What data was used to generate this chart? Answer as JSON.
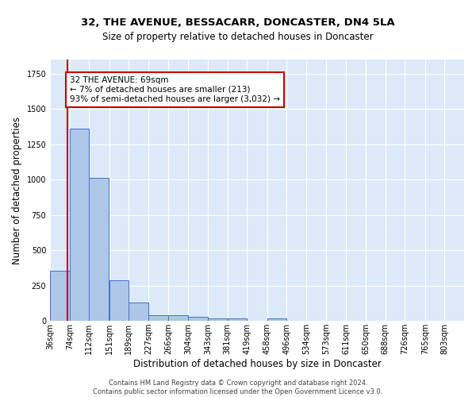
{
  "title": "32, THE AVENUE, BESSACARR, DONCASTER, DN4 5LA",
  "subtitle": "Size of property relative to detached houses in Doncaster",
  "xlabel": "Distribution of detached houses by size in Doncaster",
  "ylabel": "Number of detached properties",
  "bin_labels": [
    "36sqm",
    "74sqm",
    "112sqm",
    "151sqm",
    "189sqm",
    "227sqm",
    "266sqm",
    "304sqm",
    "343sqm",
    "381sqm",
    "419sqm",
    "458sqm",
    "496sqm",
    "534sqm",
    "573sqm",
    "611sqm",
    "650sqm",
    "688sqm",
    "726sqm",
    "765sqm",
    "803sqm"
  ],
  "bin_starts": [
    36,
    74,
    112,
    151,
    189,
    227,
    266,
    304,
    343,
    381,
    419,
    458,
    496,
    534,
    573,
    611,
    650,
    688,
    726,
    765,
    803
  ],
  "bin_width": 38,
  "bar_values": [
    355,
    1360,
    1010,
    285,
    130,
    42,
    42,
    28,
    18,
    18,
    0,
    15,
    0,
    0,
    0,
    0,
    0,
    0,
    0,
    0,
    0
  ],
  "bar_color": "#aec6e8",
  "bar_edge_color": "#4472c4",
  "bg_color": "#dce9f8",
  "grid_color": "#ffffff",
  "property_line_x": 69,
  "property_line_color": "#cc0000",
  "annotation_text": "32 THE AVENUE: 69sqm\n← 7% of detached houses are smaller (213)\n93% of semi-detached houses are larger (3,032) →",
  "annotation_box_color": "#ffffff",
  "annotation_box_edge_color": "#cc0000",
  "ylim": [
    0,
    1850
  ],
  "xlim": [
    36,
    841
  ],
  "title_fontsize": 9.5,
  "subtitle_fontsize": 8.5,
  "ylabel_fontsize": 8.5,
  "xlabel_fontsize": 8.5,
  "tick_fontsize": 7,
  "annotation_fontsize": 7.5,
  "footnote": "Contains HM Land Registry data © Crown copyright and database right 2024.\nContains public sector information licensed under the Open Government Licence v3.0.",
  "footnote_fontsize": 6.0
}
